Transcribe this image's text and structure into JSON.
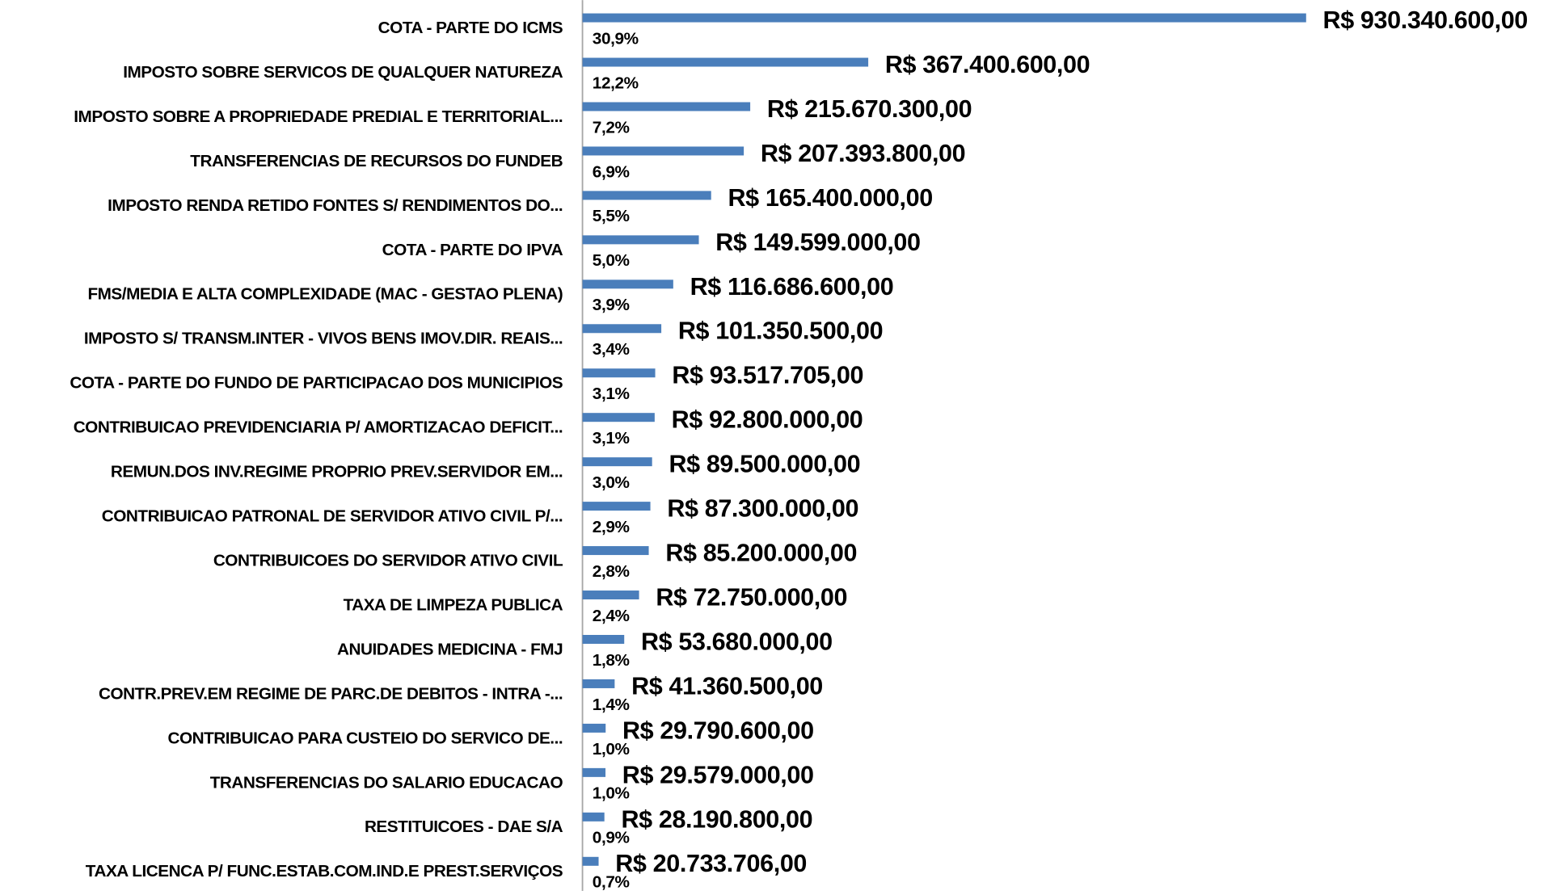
{
  "chart_data": {
    "type": "barh",
    "color": "#4a7ebb",
    "categories": [
      "COTA - PARTE DO ICMS",
      "IMPOSTO SOBRE SERVICOS DE QUALQUER NATUREZA",
      "IMPOSTO SOBRE A PROPRIEDADE PREDIAL E TERRITORIAL...",
      "TRANSFERENCIAS DE RECURSOS DO FUNDEB",
      "IMPOSTO RENDA RETIDO FONTES S/ RENDIMENTOS DO...",
      "COTA - PARTE DO IPVA",
      "FMS/MEDIA E ALTA COMPLEXIDADE (MAC - GESTAO PLENA)",
      "IMPOSTO S/ TRANSM.INTER - VIVOS BENS IMOV.DIR. REAIS...",
      "COTA - PARTE DO FUNDO DE PARTICIPACAO DOS MUNICIPIOS",
      "CONTRIBUICAO PREVIDENCIARIA P/ AMORTIZACAO DEFICIT...",
      "REMUN.DOS INV.REGIME PROPRIO PREV.SERVIDOR EM...",
      "CONTRIBUICAO PATRONAL DE SERVIDOR ATIVO CIVIL P/...",
      "CONTRIBUICOES DO SERVIDOR ATIVO CIVIL",
      "TAXA DE LIMPEZA PUBLICA",
      "ANUIDADES MEDICINA - FMJ",
      "CONTR.PREV.EM REGIME DE PARC.DE DEBITOS - INTRA -...",
      "CONTRIBUICAO PARA CUSTEIO DO SERVICO DE...",
      "TRANSFERENCIAS DO SALARIO EDUCACAO",
      "RESTITUICOES - DAE S/A",
      "TAXA LICENCA P/ FUNC.ESTAB.COM.IND.E PREST.SERVIÇOS"
    ],
    "values": [
      930340600,
      367400600,
      215670300,
      207393800,
      165400000,
      149599000,
      116686600,
      101350500,
      93517705,
      92800000,
      89500000,
      87300000,
      85200000,
      72750000,
      53680000,
      41360500,
      29790600,
      29579000,
      28190800,
      20733706
    ],
    "value_labels": [
      "R$ 930.340.600,00",
      "R$ 367.400.600,00",
      "R$ 215.670.300,00",
      "R$ 207.393.800,00",
      "R$ 165.400.000,00",
      "R$ 149.599.000,00",
      "R$ 116.686.600,00",
      "R$ 101.350.500,00",
      "R$ 93.517.705,00",
      "R$ 92.800.000,00",
      "R$ 89.500.000,00",
      "R$ 87.300.000,00",
      "R$ 85.200.000,00",
      "R$ 72.750.000,00",
      "R$ 53.680.000,00",
      "R$ 41.360.500,00",
      "R$ 29.790.600,00",
      "R$ 29.579.000,00",
      "R$ 28.190.800,00",
      "R$ 20.733.706,00"
    ],
    "share_labels": [
      "30,9%",
      "12,2%",
      "7,2%",
      "6,9%",
      "5,5%",
      "5,0%",
      "3,9%",
      "3,4%",
      "3,1%",
      "3,1%",
      "3,0%",
      "2,9%",
      "2,8%",
      "2,4%",
      "1,8%",
      "1,4%",
      "1,0%",
      "1,0%",
      "0,9%",
      "0,7%"
    ]
  }
}
